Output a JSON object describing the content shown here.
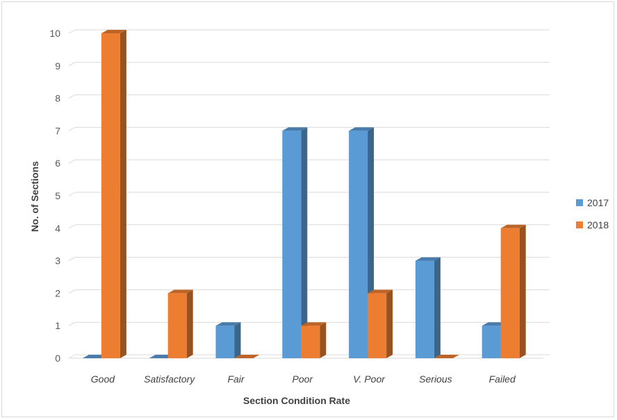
{
  "chart_data": {
    "type": "bar",
    "three_d": true,
    "title": "",
    "xlabel": "Section Condition Rate",
    "ylabel": "No. of Sections",
    "categories": [
      "Good",
      "Satisfactory",
      "Fair",
      "Poor",
      "V. Poor",
      "Serious",
      "Failed"
    ],
    "series": [
      {
        "name": "2017",
        "color": "#5b9bd5",
        "values": [
          0,
          0,
          1,
          7,
          7,
          3,
          1
        ]
      },
      {
        "name": "2018",
        "color": "#ed7d31",
        "values": [
          10,
          2,
          0,
          1,
          2,
          0,
          4
        ]
      }
    ],
    "ylim": [
      0,
      10
    ],
    "yticks": [
      "0",
      "1",
      "2",
      "3",
      "4",
      "5",
      "6",
      "7",
      "8",
      "9",
      "10"
    ],
    "grid": true,
    "legend_position": "right"
  }
}
